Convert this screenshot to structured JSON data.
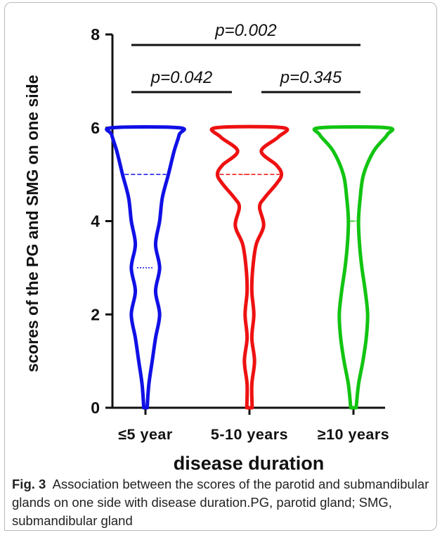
{
  "chart_data": {
    "type": "violin",
    "ylabel": "scores of the PG and SMG on one side",
    "xlabel": "disease duration",
    "ylim": [
      0,
      8
    ],
    "yticks": [
      "0",
      "2",
      "4",
      "6",
      "8"
    ],
    "grid": false,
    "categories": [
      "≤5 year",
      "5-10 years",
      "≥10 years"
    ],
    "series": [
      {
        "category": "≤5 year",
        "color": "#1010e6",
        "median": 5,
        "quartile": 3,
        "profile": [
          [
            0,
            0.05
          ],
          [
            0.5,
            0.1
          ],
          [
            1,
            0.2
          ],
          [
            1.5,
            0.3
          ],
          [
            2,
            0.42
          ],
          [
            2.5,
            0.3
          ],
          [
            3,
            0.42
          ],
          [
            3.5,
            0.3
          ],
          [
            4,
            0.42
          ],
          [
            4.5,
            0.5
          ],
          [
            5,
            0.68
          ],
          [
            5.5,
            0.85
          ],
          [
            5.85,
            1.0
          ],
          [
            6,
            1.0
          ]
        ]
      },
      {
        "category": "5-10 years",
        "color": "#ee1111",
        "median": 5,
        "quartile": 5,
        "profile": [
          [
            0,
            0.08
          ],
          [
            0.5,
            0.07
          ],
          [
            1,
            0.15
          ],
          [
            1.5,
            0.07
          ],
          [
            2,
            0.13
          ],
          [
            2.5,
            0.07
          ],
          [
            3,
            0.1
          ],
          [
            3.5,
            0.2
          ],
          [
            3.9,
            0.42
          ],
          [
            4.3,
            0.3
          ],
          [
            4.5,
            0.45
          ],
          [
            4.8,
            0.8
          ],
          [
            5,
            0.95
          ],
          [
            5.2,
            0.8
          ],
          [
            5.5,
            0.35
          ],
          [
            5.8,
            0.85
          ],
          [
            6,
            1.0
          ]
        ]
      },
      {
        "category": "≥10 years",
        "color": "#12c412",
        "median": 4,
        "quartile": 4,
        "profile": [
          [
            0,
            0.08
          ],
          [
            0.5,
            0.15
          ],
          [
            1,
            0.28
          ],
          [
            1.5,
            0.38
          ],
          [
            2,
            0.42
          ],
          [
            2.5,
            0.35
          ],
          [
            3,
            0.25
          ],
          [
            3.5,
            0.18
          ],
          [
            4,
            0.15
          ],
          [
            4.5,
            0.2
          ],
          [
            5,
            0.3
          ],
          [
            5.5,
            0.6
          ],
          [
            5.85,
            1.0
          ],
          [
            6,
            1.0
          ]
        ]
      }
    ],
    "annotations": [
      {
        "label": "p=0.042",
        "from": 0,
        "to": 1,
        "level": 1
      },
      {
        "label": "p=0.345",
        "from": 1,
        "to": 2,
        "level": 1
      },
      {
        "label": "p=0.002",
        "from": 0,
        "to": 2,
        "level": 2
      }
    ]
  },
  "caption": {
    "prefix": "Fig. 3",
    "text": "Association between the scores of the parotid and submandibular glands on one side with disease duration.PG, parotid gland; SMG, submandibular gland"
  }
}
